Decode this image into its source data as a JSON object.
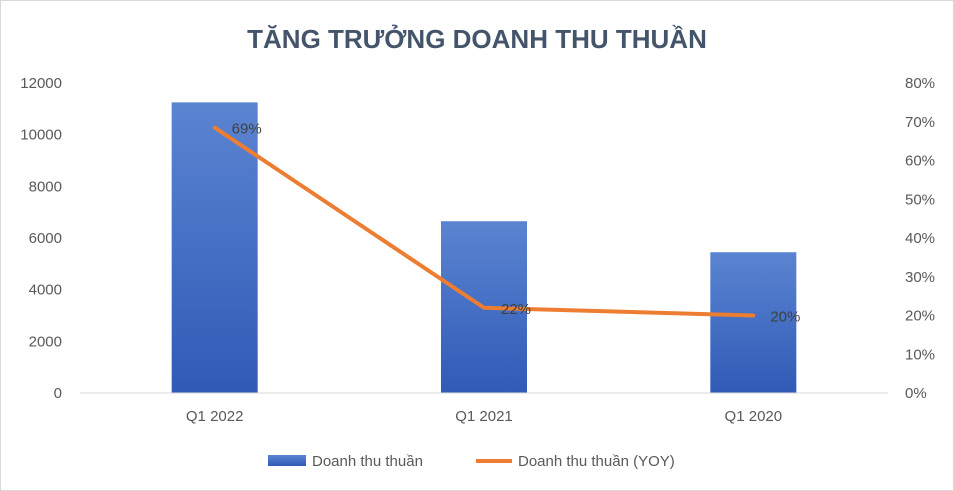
{
  "chart_data": {
    "type": "bar",
    "title": "TĂNG TRƯỞNG DOANH THU THUẦN",
    "categories": [
      "Q1 2022",
      "Q1 2021",
      "Q1 2020"
    ],
    "series": [
      {
        "name": "Doanh thu thuần",
        "type": "bar",
        "axis": "left",
        "values": [
          11250,
          6650,
          5450
        ],
        "color": "#4472c4"
      },
      {
        "name": "Doanh thu thuần (YOY)",
        "type": "line",
        "axis": "right",
        "values": [
          0.685,
          0.22,
          0.2
        ],
        "labels": [
          "69%",
          "22%",
          "20%"
        ],
        "color": "#ed7d31"
      }
    ],
    "y_left": {
      "min": 0,
      "max": 12000,
      "step": 2000,
      "ticks": [
        "0",
        "2000",
        "4000",
        "6000",
        "8000",
        "10000",
        "12000"
      ]
    },
    "y_right": {
      "min": 0,
      "max": 0.8,
      "step": 0.1,
      "ticks": [
        "0%",
        "10%",
        "20%",
        "30%",
        "40%",
        "50%",
        "60%",
        "70%",
        "80%"
      ]
    },
    "legend_position": "bottom",
    "grid": false
  }
}
